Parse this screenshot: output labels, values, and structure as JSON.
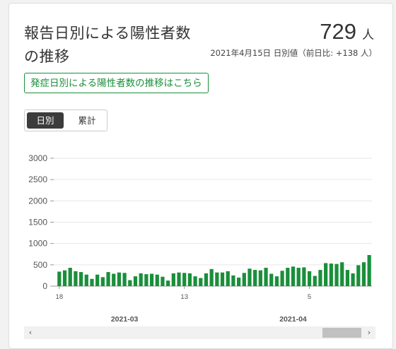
{
  "header": {
    "title": "報告日別による陽性者数の推移",
    "value": "729",
    "unit": "人",
    "subtitle": "2021年4月15日 日別値（前日比: +138 人）"
  },
  "link_button": {
    "label": "発症日別による陽性者数の推移はこちら"
  },
  "toggle": {
    "daily_label": "日別",
    "cumulative_label": "累計",
    "selected": "日別"
  },
  "colors": {
    "bar": "#1a8f3a",
    "accent": "#1a8f3a"
  },
  "chart_data": {
    "type": "bar",
    "ylim": [
      0,
      3000
    ],
    "yticks": [
      0,
      500,
      1000,
      1500,
      2000,
      2500,
      3000
    ],
    "x_day_labels": [
      {
        "index": 0,
        "label": "18"
      },
      {
        "index": 23,
        "label": "13"
      },
      {
        "index": 46,
        "label": "5"
      }
    ],
    "x_month_labels": [
      {
        "index": 12,
        "label": "2021-03"
      },
      {
        "index": 43,
        "label": "2021-04"
      }
    ],
    "values": [
      340,
      370,
      430,
      350,
      330,
      270,
      170,
      270,
      210,
      330,
      290,
      320,
      310,
      140,
      230,
      300,
      280,
      290,
      270,
      220,
      130,
      300,
      320,
      310,
      300,
      230,
      190,
      300,
      400,
      320,
      320,
      350,
      250,
      200,
      310,
      410,
      380,
      370,
      430,
      290,
      230,
      360,
      430,
      460,
      430,
      440,
      350,
      240,
      380,
      540,
      530,
      520,
      560,
      380,
      300,
      490,
      560,
      729
    ]
  },
  "scroll": {
    "left_arrow": "‹",
    "right_arrow": "›"
  }
}
